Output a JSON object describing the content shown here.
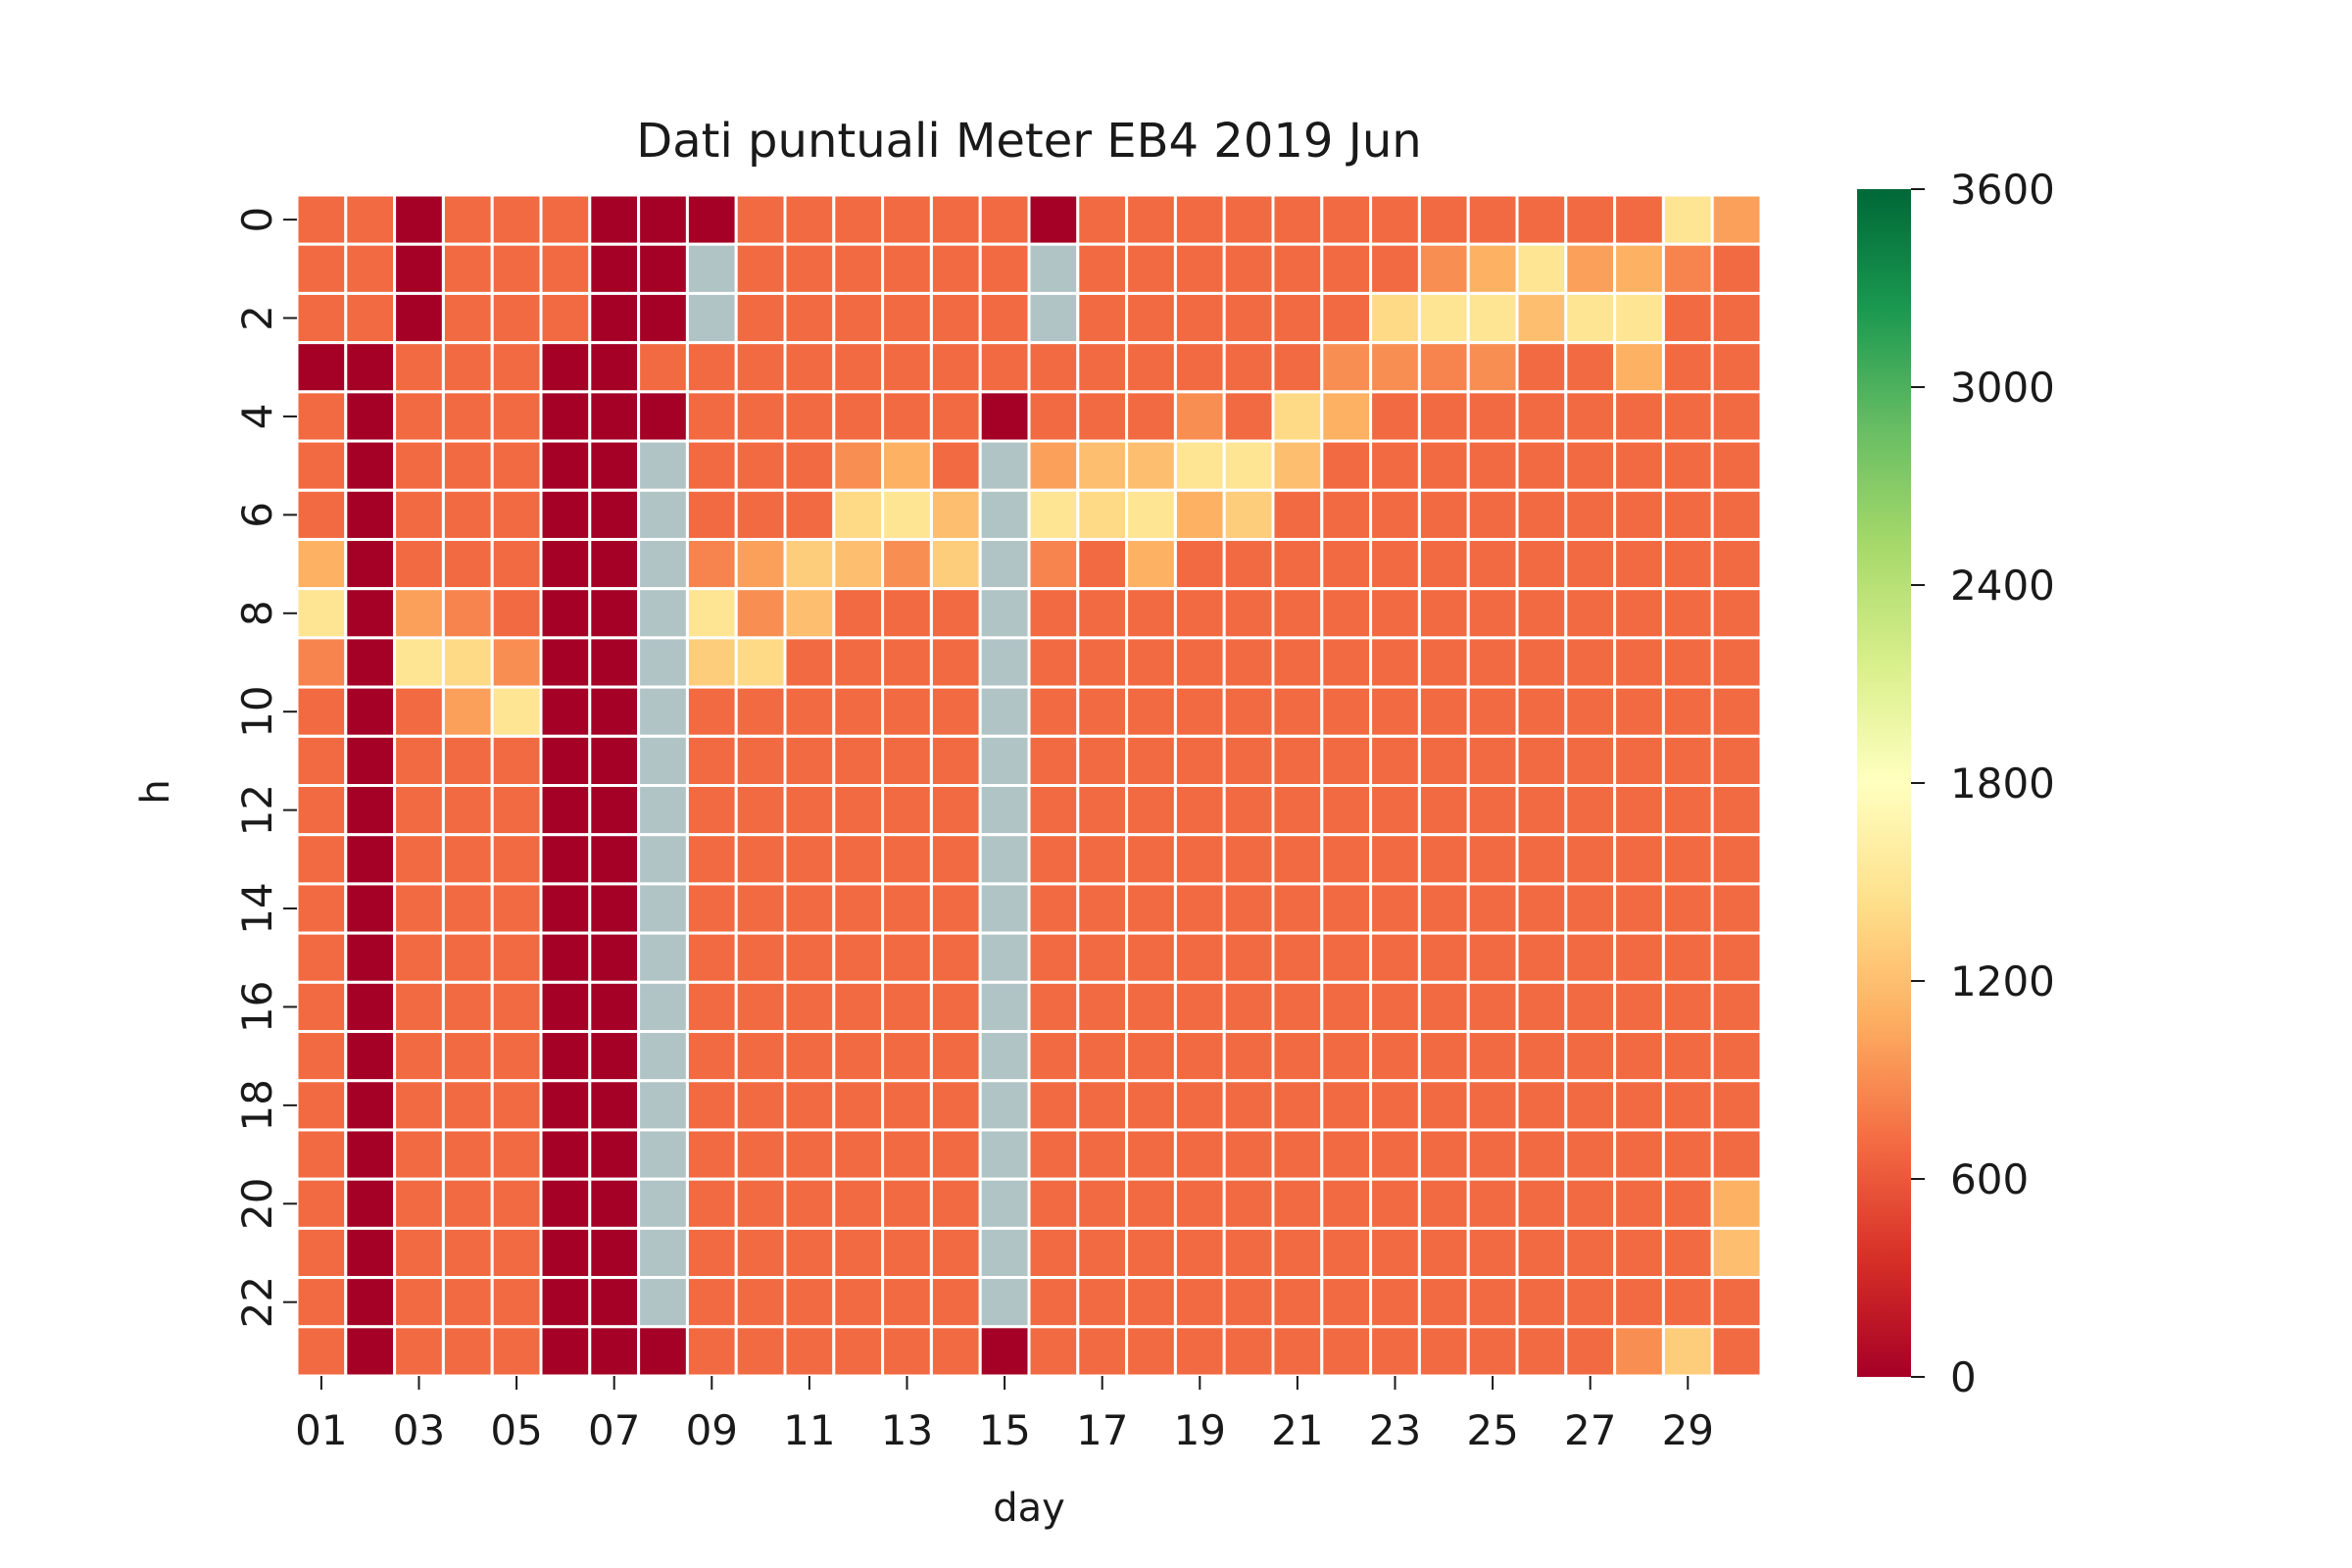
{
  "chart_data": {
    "type": "heatmap",
    "title": "Dati puntuali Meter EB4 2019 Jun",
    "xlabel": "day",
    "ylabel": "h",
    "x_ticks": [
      "01",
      "03",
      "05",
      "07",
      "09",
      "11",
      "13",
      "15",
      "17",
      "19",
      "21",
      "23",
      "25",
      "27",
      "29"
    ],
    "y_ticks": [
      "0",
      "2",
      "4",
      "6",
      "8",
      "10",
      "12",
      "14",
      "16",
      "18",
      "20",
      "22"
    ],
    "days": [
      "01",
      "02",
      "03",
      "04",
      "05",
      "06",
      "07",
      "08",
      "09",
      "10",
      "11",
      "12",
      "13",
      "14",
      "15",
      "16",
      "17",
      "18",
      "19",
      "20",
      "21",
      "22",
      "23",
      "24",
      "25",
      "26",
      "27",
      "28",
      "29",
      "30"
    ],
    "hours": [
      0,
      1,
      2,
      3,
      4,
      5,
      6,
      7,
      8,
      9,
      10,
      11,
      12,
      13,
      14,
      15,
      16,
      17,
      18,
      19,
      20,
      21,
      22,
      23
    ],
    "colorbar": {
      "min": 0,
      "max": 3600,
      "ticks": [
        "0",
        "600",
        "1200",
        "1800",
        "2400",
        "3000",
        "3600"
      ],
      "colormap": "RdYlGn"
    },
    "missing_color": "#b0c4c6",
    "grid_line_color": "#ffffff",
    "base_value": 700,
    "values": [
      [
        700,
        700,
        0,
        700,
        700,
        700,
        0,
        0,
        0,
        700,
        700,
        700,
        700,
        700,
        700,
        0,
        700,
        700,
        700,
        700,
        700,
        700,
        700,
        700,
        700,
        700,
        700,
        700,
        1500,
        1000
      ],
      [
        700,
        700,
        0,
        700,
        700,
        700,
        0,
        0,
        null,
        700,
        700,
        700,
        700,
        700,
        700,
        null,
        700,
        700,
        700,
        700,
        700,
        700,
        700,
        900,
        1100,
        1500,
        1000,
        1100,
        850,
        700
      ],
      [
        700,
        700,
        0,
        700,
        700,
        700,
        0,
        0,
        null,
        700,
        700,
        700,
        700,
        700,
        700,
        null,
        700,
        700,
        700,
        700,
        700,
        700,
        1400,
        1500,
        1500,
        1200,
        1500,
        1500,
        700,
        700
      ],
      [
        0,
        0,
        700,
        700,
        700,
        0,
        0,
        700,
        700,
        700,
        700,
        700,
        700,
        700,
        700,
        700,
        700,
        700,
        700,
        700,
        700,
        900,
        900,
        850,
        900,
        700,
        700,
        1100,
        700,
        700
      ],
      [
        700,
        0,
        700,
        700,
        700,
        0,
        0,
        0,
        700,
        700,
        700,
        700,
        700,
        700,
        0,
        700,
        700,
        700,
        900,
        700,
        1400,
        1100,
        700,
        700,
        700,
        700,
        700,
        700,
        700,
        700
      ],
      [
        700,
        0,
        700,
        700,
        700,
        0,
        0,
        null,
        700,
        700,
        700,
        900,
        1100,
        700,
        null,
        1000,
        1200,
        1200,
        1500,
        1500,
        1200,
        700,
        700,
        700,
        700,
        700,
        700,
        700,
        700,
        700
      ],
      [
        700,
        0,
        700,
        700,
        700,
        0,
        0,
        null,
        700,
        700,
        700,
        1400,
        1500,
        1200,
        null,
        1500,
        1400,
        1500,
        1100,
        1300,
        700,
        700,
        700,
        700,
        700,
        700,
        700,
        700,
        700,
        700
      ],
      [
        1100,
        0,
        700,
        700,
        700,
        0,
        0,
        null,
        850,
        1000,
        1300,
        1200,
        900,
        1300,
        null,
        850,
        700,
        1100,
        700,
        700,
        700,
        700,
        700,
        700,
        700,
        700,
        700,
        700,
        700,
        700
      ],
      [
        1500,
        0,
        1000,
        850,
        700,
        0,
        0,
        null,
        1500,
        900,
        1200,
        700,
        700,
        700,
        null,
        700,
        700,
        700,
        700,
        700,
        700,
        700,
        700,
        700,
        700,
        700,
        700,
        700,
        700,
        700
      ],
      [
        850,
        0,
        1500,
        1400,
        900,
        0,
        0,
        null,
        1300,
        1400,
        700,
        700,
        700,
        700,
        null,
        700,
        700,
        700,
        700,
        700,
        700,
        700,
        700,
        700,
        700,
        700,
        700,
        700,
        700,
        700
      ],
      [
        700,
        0,
        700,
        1000,
        1500,
        0,
        0,
        null,
        700,
        700,
        700,
        700,
        700,
        700,
        null,
        700,
        700,
        700,
        700,
        700,
        700,
        700,
        700,
        700,
        700,
        700,
        700,
        700,
        700,
        700
      ],
      [
        700,
        0,
        700,
        700,
        700,
        0,
        0,
        null,
        700,
        700,
        700,
        700,
        700,
        700,
        null,
        700,
        700,
        700,
        700,
        700,
        700,
        700,
        700,
        700,
        700,
        700,
        700,
        700,
        700,
        700
      ],
      [
        700,
        0,
        700,
        700,
        700,
        0,
        0,
        null,
        700,
        700,
        700,
        700,
        700,
        700,
        null,
        700,
        700,
        700,
        700,
        700,
        700,
        700,
        700,
        700,
        700,
        700,
        700,
        700,
        700,
        700
      ],
      [
        700,
        0,
        700,
        700,
        700,
        0,
        0,
        null,
        700,
        700,
        700,
        700,
        700,
        700,
        null,
        700,
        700,
        700,
        700,
        700,
        700,
        700,
        700,
        700,
        700,
        700,
        700,
        700,
        700,
        700
      ],
      [
        700,
        0,
        700,
        700,
        700,
        0,
        0,
        null,
        700,
        700,
        700,
        700,
        700,
        700,
        null,
        700,
        700,
        700,
        700,
        700,
        700,
        700,
        700,
        700,
        700,
        700,
        700,
        700,
        700,
        700
      ],
      [
        700,
        0,
        700,
        700,
        700,
        0,
        0,
        null,
        700,
        700,
        700,
        700,
        700,
        700,
        null,
        700,
        700,
        700,
        700,
        700,
        700,
        700,
        700,
        700,
        700,
        700,
        700,
        700,
        700,
        700
      ],
      [
        700,
        0,
        700,
        700,
        700,
        0,
        0,
        null,
        700,
        700,
        700,
        700,
        700,
        700,
        null,
        700,
        700,
        700,
        700,
        700,
        700,
        700,
        700,
        700,
        700,
        700,
        700,
        700,
        700,
        700
      ],
      [
        700,
        0,
        700,
        700,
        700,
        0,
        0,
        null,
        700,
        700,
        700,
        700,
        700,
        700,
        null,
        700,
        700,
        700,
        700,
        700,
        700,
        700,
        700,
        700,
        700,
        700,
        700,
        700,
        700,
        700
      ],
      [
        700,
        0,
        700,
        700,
        700,
        0,
        0,
        null,
        700,
        700,
        700,
        700,
        700,
        700,
        null,
        700,
        700,
        700,
        700,
        700,
        700,
        700,
        700,
        700,
        700,
        700,
        700,
        700,
        700,
        700
      ],
      [
        700,
        0,
        700,
        700,
        700,
        0,
        0,
        null,
        700,
        700,
        700,
        700,
        700,
        700,
        null,
        700,
        700,
        700,
        700,
        700,
        700,
        700,
        700,
        700,
        700,
        700,
        700,
        700,
        700,
        700
      ],
      [
        700,
        0,
        700,
        700,
        700,
        0,
        0,
        null,
        700,
        700,
        700,
        700,
        700,
        700,
        null,
        700,
        700,
        700,
        700,
        700,
        700,
        700,
        700,
        700,
        700,
        700,
        700,
        700,
        700,
        1100
      ],
      [
        700,
        0,
        700,
        700,
        700,
        0,
        0,
        null,
        700,
        700,
        700,
        700,
        700,
        700,
        null,
        700,
        700,
        700,
        700,
        700,
        700,
        700,
        700,
        700,
        700,
        700,
        700,
        700,
        700,
        1200
      ],
      [
        700,
        0,
        700,
        700,
        700,
        0,
        0,
        null,
        700,
        700,
        700,
        700,
        700,
        700,
        null,
        700,
        700,
        700,
        700,
        700,
        700,
        700,
        700,
        700,
        700,
        700,
        700,
        700,
        700,
        700
      ],
      [
        700,
        0,
        700,
        700,
        700,
        0,
        0,
        0,
        700,
        700,
        700,
        700,
        700,
        700,
        0,
        700,
        700,
        700,
        700,
        700,
        700,
        700,
        700,
        700,
        700,
        700,
        700,
        900,
        1300,
        700
      ]
    ]
  }
}
